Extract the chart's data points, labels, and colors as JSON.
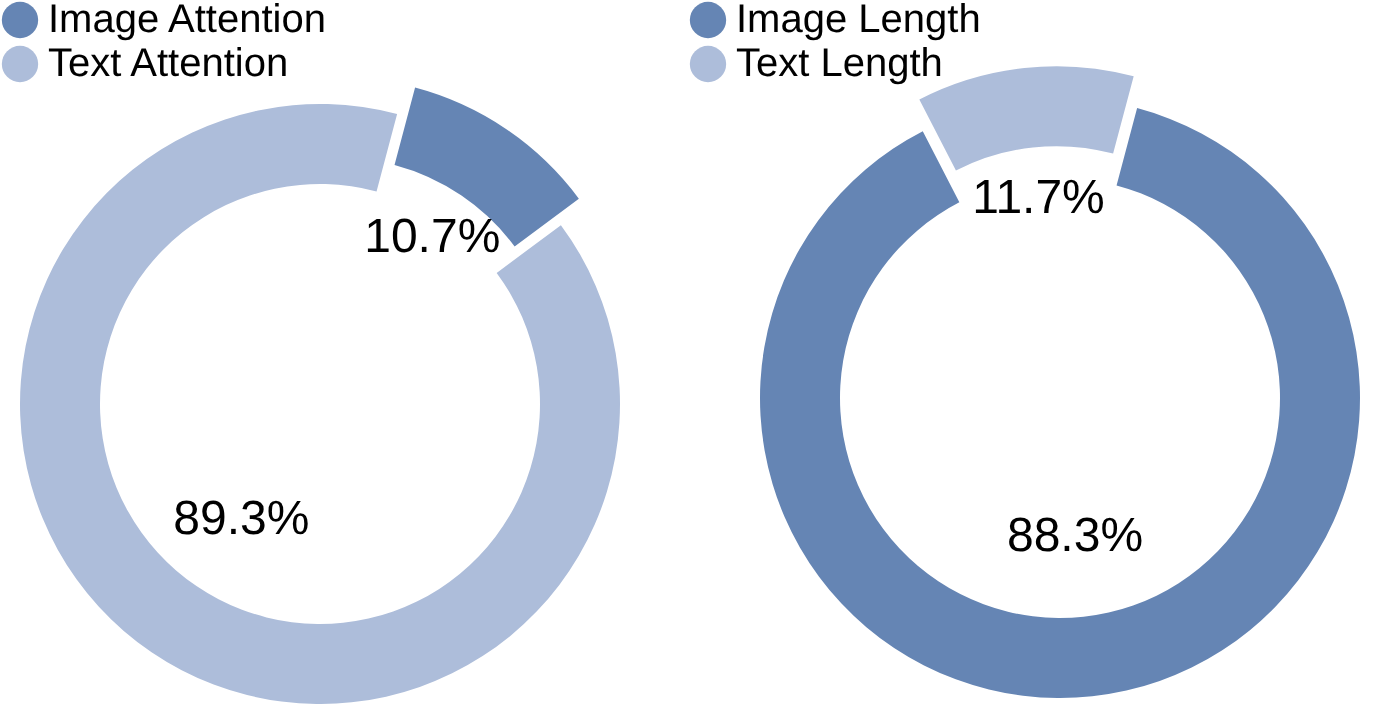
{
  "chart_data": [
    {
      "type": "donut",
      "categories": [
        "Image Attention",
        "Text Attention"
      ],
      "values": [
        10.7,
        89.3
      ],
      "colors": [
        "#6585b4",
        "#adbdda"
      ],
      "value_labels": [
        "10.7%",
        "89.3%"
      ],
      "legend": "top left"
    },
    {
      "type": "donut",
      "categories": [
        "Image Length",
        "Text Length"
      ],
      "values": [
        88.3,
        11.7
      ],
      "colors": [
        "#6585b4",
        "#adbdda"
      ],
      "value_labels": [
        "88.3%",
        "11.7%"
      ],
      "legend": "top left"
    }
  ]
}
